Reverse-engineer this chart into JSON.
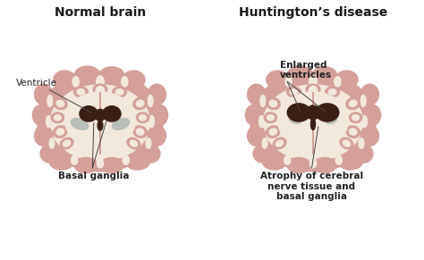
{
  "title_left": "Normal brain",
  "title_right": "Huntington’s disease",
  "bg_color": "#ffffff",
  "brain_outer_color": "#d4a099",
  "brain_inner_color": "#f2e8dc",
  "brain_gyri_color": "#c89088",
  "ventricle_dark_color": "#3a1f15",
  "ventricle_light_color": "#b8bfb8",
  "label_ventricle": "Ventricle",
  "label_basal": "Basal ganglia",
  "label_enlarged": "Enlarged\nventricles",
  "label_atrophy": "Atrophy of cerebral\nnerve tissue and\nbasal ganglia",
  "title_fontsize": 10,
  "label_fontsize": 7.5
}
